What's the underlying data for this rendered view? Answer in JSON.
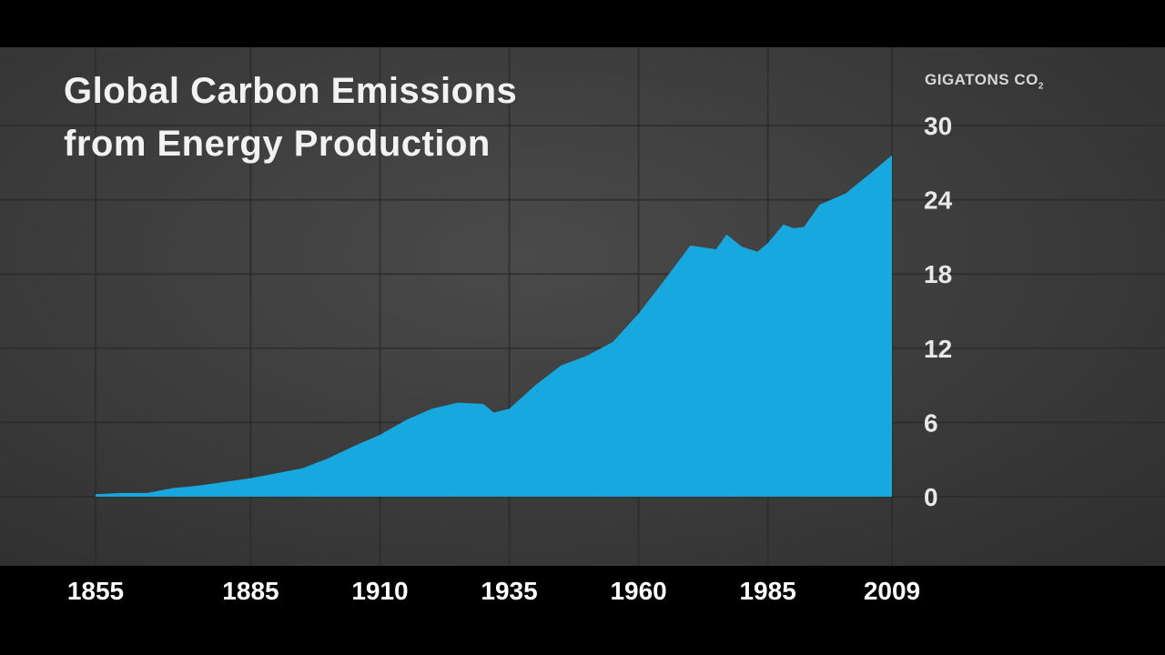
{
  "chart_data": {
    "type": "area",
    "title_lines": [
      "Global Carbon Emissions",
      "from Energy Production"
    ],
    "unit_label": "GIGATONS CO",
    "unit_subscript": "2",
    "xlim": [
      1855,
      2009
    ],
    "ylim": [
      0,
      30
    ],
    "y_ticks": [
      "0",
      "6",
      "12",
      "18",
      "24",
      "30"
    ],
    "x_ticks": [
      "1855",
      "1885",
      "1910",
      "1935",
      "1960",
      "1985",
      "2009"
    ],
    "grid": true,
    "fill_color": "#17a8e0",
    "series": [
      {
        "x": [
          1855,
          1860,
          1865,
          1870,
          1875,
          1880,
          1885,
          1890,
          1895,
          1900,
          1905,
          1910,
          1915,
          1920,
          1925,
          1930,
          1932,
          1935,
          1940,
          1945,
          1950,
          1955,
          1960,
          1965,
          1970,
          1975,
          1977,
          1980,
          1983,
          1985,
          1988,
          1990,
          1992,
          1995,
          2000,
          2005,
          2009
        ],
        "y": [
          0.2,
          0.3,
          0.3,
          0.7,
          0.9,
          1.2,
          1.5,
          1.9,
          2.3,
          3.1,
          4.1,
          5.0,
          6.2,
          7.1,
          7.6,
          7.5,
          6.8,
          7.1,
          9.0,
          10.6,
          11.4,
          12.5,
          14.8,
          17.5,
          20.3,
          20.0,
          21.2,
          20.2,
          19.8,
          20.5,
          22.0,
          21.7,
          21.8,
          23.6,
          24.5,
          26.2,
          27.6
        ]
      }
    ]
  }
}
